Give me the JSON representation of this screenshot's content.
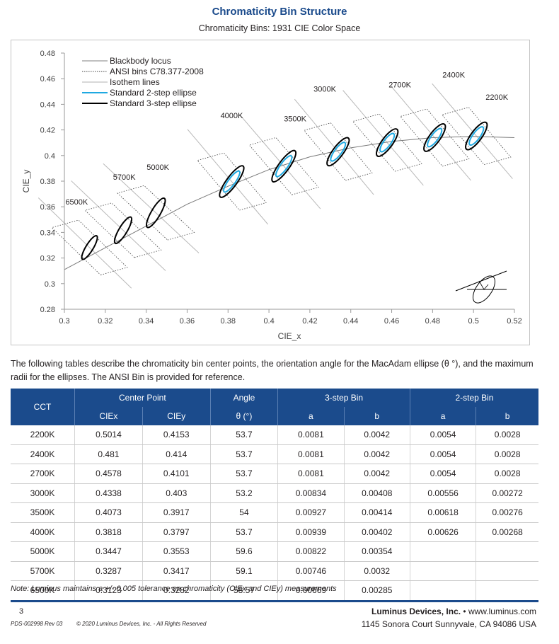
{
  "title": "Chromaticity Bin Structure",
  "subtitle": "Chromaticity Bins: 1931 CIE Color Space",
  "chart_data": {
    "type": "scatter",
    "xlabel": "CIE_x",
    "ylabel": "CIE_y",
    "xlim": [
      0.3,
      0.52
    ],
    "ylim": [
      0.28,
      0.48
    ],
    "x_ticks": [
      "0.3",
      "0.32",
      "0.34",
      "0.36",
      "0.38",
      "0.4",
      "0.42",
      "0.44",
      "0.46",
      "0.48",
      "0.5",
      "0.52"
    ],
    "y_ticks": [
      "0.48",
      "0.46",
      "0.44",
      "0.42",
      "0.4",
      "0.38",
      "0.36",
      "0.34",
      "0.32",
      "0.3",
      "0.28"
    ],
    "legend": [
      {
        "name": "Blackbody locus",
        "color": "#808080",
        "style": "solid"
      },
      {
        "name": "ANSI bins C78.377-2008",
        "color": "#404040",
        "style": "dotted"
      },
      {
        "name": "Isothem lines",
        "color": "#b0b0b0",
        "style": "solid"
      },
      {
        "name": "Standard 2-step ellipse",
        "color": "#1fa9e1",
        "style": "solid"
      },
      {
        "name": "Standard 3-step ellipse",
        "color": "#000000",
        "style": "solid"
      }
    ],
    "legend_position": "top-left",
    "cct_labels": [
      "2200K",
      "2400K",
      "2700K",
      "3000K",
      "3500K",
      "4000K",
      "5000K",
      "5700K",
      "6500K"
    ],
    "blackbody_locus": {
      "x": [
        0.3,
        0.32,
        0.34,
        0.36,
        0.38,
        0.4,
        0.42,
        0.44,
        0.46,
        0.48,
        0.5,
        0.52
      ],
      "y": [
        0.311,
        0.328,
        0.345,
        0.362,
        0.376,
        0.389,
        0.399,
        0.406,
        0.411,
        0.414,
        0.415,
        0.414
      ]
    },
    "ellipses": [
      {
        "cct": "2200K",
        "x": 0.5014,
        "y": 0.4153,
        "angle": 53.7,
        "a3": 0.0081,
        "b3": 0.0042,
        "a2": 0.0054,
        "b2": 0.0028
      },
      {
        "cct": "2400K",
        "x": 0.481,
        "y": 0.414,
        "angle": 53.7,
        "a3": 0.0081,
        "b3": 0.0042,
        "a2": 0.0054,
        "b2": 0.0028
      },
      {
        "cct": "2700K",
        "x": 0.4578,
        "y": 0.4101,
        "angle": 53.7,
        "a3": 0.0081,
        "b3": 0.0042,
        "a2": 0.0054,
        "b2": 0.0028
      },
      {
        "cct": "3000K",
        "x": 0.4338,
        "y": 0.403,
        "angle": 53.2,
        "a3": 0.00834,
        "b3": 0.00408,
        "a2": 0.00556,
        "b2": 0.00272
      },
      {
        "cct": "3500K",
        "x": 0.4073,
        "y": 0.3917,
        "angle": 54,
        "a3": 0.00927,
        "b3": 0.00414,
        "a2": 0.00618,
        "b2": 0.00276
      },
      {
        "cct": "4000K",
        "x": 0.3818,
        "y": 0.3797,
        "angle": 53.7,
        "a3": 0.00939,
        "b3": 0.00402,
        "a2": 0.00626,
        "b2": 0.00268
      },
      {
        "cct": "5000K",
        "x": 0.3447,
        "y": 0.3553,
        "angle": 59.6,
        "a3": 0.00822,
        "b3": 0.00354
      },
      {
        "cct": "5700K",
        "x": 0.3287,
        "y": 0.3417,
        "angle": 59.1,
        "a3": 0.00746,
        "b3": 0.0032
      },
      {
        "cct": "6500K",
        "x": 0.3123,
        "y": 0.3282,
        "angle": 58.57,
        "a3": 0.00669,
        "b3": 0.00285
      }
    ]
  },
  "intro_text": "The following tables describe the chromaticity bin center points, the orientation angle for the MacAdam ellipse (θ °), and the maximum radii for the ellipses. The ANSI Bin is provided for reference.",
  "table": {
    "header_top": {
      "cct": "CCT",
      "center_point": "Center Point",
      "angle": "Angle",
      "three_step": "3-step Bin",
      "two_step": "2-step Bin"
    },
    "header_sub": {
      "ciex": "CIEx",
      "ciey": "CIEy",
      "theta": "θ (°)",
      "a3": "a",
      "b3": "b",
      "a2": "a",
      "b2": "b"
    },
    "rows": [
      [
        "2200K",
        "0.5014",
        "0.4153",
        "53.7",
        "0.0081",
        "0.0042",
        "0.0054",
        "0.0028"
      ],
      [
        "2400K",
        "0.481",
        "0.414",
        "53.7",
        "0.0081",
        "0.0042",
        "0.0054",
        "0.0028"
      ],
      [
        "2700K",
        "0.4578",
        "0.4101",
        "53.7",
        "0.0081",
        "0.0042",
        "0.0054",
        "0.0028"
      ],
      [
        "3000K",
        "0.4338",
        "0.403",
        "53.2",
        "0.00834",
        "0.00408",
        "0.00556",
        "0.00272"
      ],
      [
        "3500K",
        "0.4073",
        "0.3917",
        "54",
        "0.00927",
        "0.00414",
        "0.00618",
        "0.00276"
      ],
      [
        "4000K",
        "0.3818",
        "0.3797",
        "53.7",
        "0.00939",
        "0.00402",
        "0.00626",
        "0.00268"
      ],
      [
        "5000K",
        "0.3447",
        "0.3553",
        "59.6",
        "0.00822",
        "0.00354",
        "",
        ""
      ],
      [
        "5700K",
        "0.3287",
        "0.3417",
        "59.1",
        "0.00746",
        "0.0032",
        "",
        ""
      ],
      [
        "6500K",
        "0.3123",
        "0.3282",
        "58.57",
        "0.00669",
        "0.00285",
        "",
        ""
      ]
    ]
  },
  "note": "Note: Luminus maintains a +/- 0.005 tolerance on chromaticity (CIEx and CIEy) measurements",
  "footer": {
    "page_number": "3",
    "doc_id": "PDS-002998 Rev 03",
    "copyright": "© 2020 Luminus Devices, Inc. - All Rights Reserved",
    "company": "Luminus Devices, Inc.",
    "separator": "•",
    "website": "www.luminus.com",
    "address": "1145 Sonora Court Sunnyvale, CA 94086 USA"
  },
  "colors": {
    "brand_blue": "#1b4b8c",
    "ellipse_2step": "#1fa9e1",
    "ellipse_3step": "#000000"
  }
}
